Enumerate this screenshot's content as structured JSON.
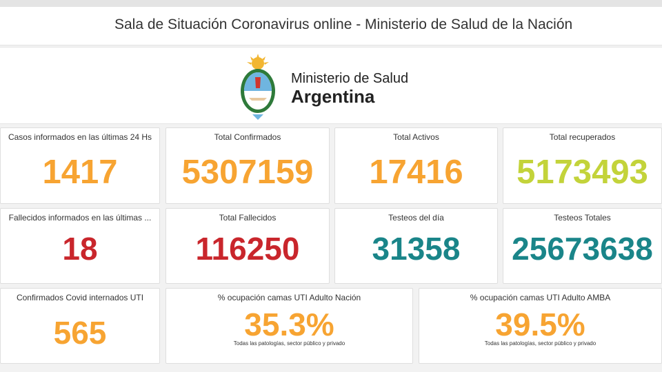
{
  "header": {
    "title": "Sala de Situación Coronavirus online - Ministerio de Salud de la Nación"
  },
  "logo": {
    "line1": "Ministerio de Salud",
    "line2": "Argentina",
    "icon": "coat-of-arms-icon"
  },
  "colors": {
    "orange": "#f7a432",
    "yellowgreen": "#c3d33a",
    "red": "#c9262c",
    "teal": "#1a8589"
  },
  "cards": [
    {
      "label": "Casos informados en las últimas 24 Hs",
      "value": "1417",
      "color": "#f7a432"
    },
    {
      "label": "Total Confirmados",
      "value": "5307159",
      "color": "#f7a432"
    },
    {
      "label": "Total Activos",
      "value": "17416",
      "color": "#f7a432"
    },
    {
      "label": "Total recuperados",
      "value": "5173493",
      "color": "#c3d33a"
    },
    {
      "label": "Fallecidos informados en las últimas ...",
      "value": "18",
      "color": "#c9262c"
    },
    {
      "label": "Total Fallecidos",
      "value": "116250",
      "color": "#c9262c"
    },
    {
      "label": "Testeos del día",
      "value": "31358",
      "color": "#1a8589"
    },
    {
      "label": "Testeos Totales",
      "value": "25673638",
      "color": "#1a8589"
    },
    {
      "label": "Confirmados Covid internados UTI",
      "value": "565",
      "color": "#f7a432"
    },
    {
      "label": "% ocupación camas UTI Adulto Nación",
      "value": "35.3%",
      "sub": "Todas las patologías, sector público y privado",
      "color": "#f7a432"
    },
    {
      "label": "% ocupación camas UTI Adulto AMBA",
      "value": "39.5%",
      "sub": "Todas las patologías, sector público y privado",
      "color": "#f7a432"
    }
  ]
}
